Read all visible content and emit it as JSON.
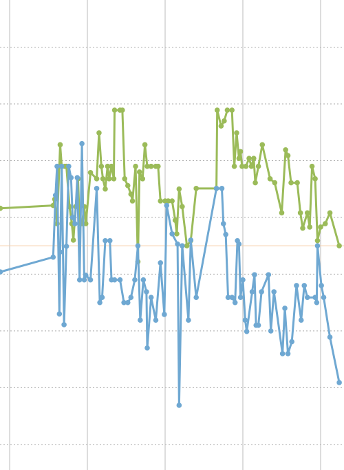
{
  "chart_data": {
    "type": "line",
    "xlim": [
      -0.124,
      4.301
    ],
    "ylim": [
      -0.45,
      7.83
    ],
    "xticks": [
      0,
      1,
      2,
      3,
      4
    ],
    "yticks": [
      0,
      1,
      2,
      3,
      4,
      5,
      6,
      7
    ],
    "grid": true,
    "reference_line": {
      "value": 3.5,
      "color": "#f7cfa8"
    },
    "series": [
      {
        "color": "#9bbb59",
        "x": [
          -0.12,
          0.56,
          0.58,
          0.61,
          0.65,
          0.67,
          0.71,
          0.73,
          0.77,
          0.8,
          0.82,
          0.85,
          0.88,
          0.9,
          0.93,
          0.96,
          0.98,
          1.04,
          1.12,
          1.15,
          1.18,
          1.2,
          1.23,
          1.26,
          1.28,
          1.31,
          1.34,
          1.35,
          1.42,
          1.45,
          1.48,
          1.52,
          1.56,
          1.58,
          1.62,
          1.65,
          1.67,
          1.71,
          1.74,
          1.77,
          1.82,
          1.88,
          1.91,
          1.94,
          2.0,
          2.04,
          2.09,
          2.13,
          2.15,
          2.18,
          2.22,
          2.28,
          2.33,
          2.4,
          2.66,
          2.67,
          2.72,
          2.76,
          2.8,
          2.86,
          2.89,
          2.92,
          2.95,
          2.97,
          2.99,
          3.04,
          3.08,
          3.11,
          3.14,
          3.16,
          3.2,
          3.25,
          3.35,
          3.41,
          3.5,
          3.55,
          3.58,
          3.62,
          3.7,
          3.74,
          3.77,
          3.83,
          3.86,
          3.89,
          3.93,
          3.96,
          4.0,
          4.06,
          4.12,
          4.24
        ],
        "values": [
          4.16,
          4.21,
          4.32,
          3.89,
          5.28,
          4.9,
          4.9,
          4.9,
          4.19,
          3.89,
          3.6,
          4.19,
          4.68,
          3.89,
          3.89,
          4.19,
          3.89,
          4.79,
          4.68,
          5.49,
          4.9,
          4.68,
          4.5,
          4.9,
          4.68,
          4.9,
          4.68,
          5.89,
          5.89,
          5.89,
          4.68,
          4.56,
          4.41,
          4.29,
          4.9,
          3.22,
          4.8,
          4.68,
          5.28,
          4.9,
          4.9,
          4.9,
          4.9,
          4.29,
          4.29,
          4.29,
          4.29,
          3.95,
          3.71,
          4.5,
          4.19,
          3.5,
          3.59,
          4.51,
          4.51,
          5.89,
          5.61,
          5.7,
          5.89,
          5.89,
          4.9,
          5.49,
          5.04,
          5.16,
          4.9,
          4.9,
          5.04,
          4.9,
          5.04,
          4.61,
          4.9,
          5.28,
          4.68,
          4.61,
          4.08,
          5.19,
          5.09,
          4.61,
          4.61,
          4.08,
          3.81,
          4.08,
          3.83,
          4.9,
          4.68,
          3.59,
          3.83,
          3.89,
          4.08,
          3.5
        ]
      },
      {
        "color": "#6fa8d2",
        "x": [
          -0.12,
          0.56,
          0.59,
          0.61,
          0.64,
          0.65,
          0.67,
          0.7,
          0.73,
          0.76,
          0.79,
          0.81,
          0.84,
          0.87,
          0.9,
          0.93,
          0.96,
          0.98,
          1.04,
          1.12,
          1.16,
          1.19,
          1.23,
          1.29,
          1.31,
          1.35,
          1.42,
          1.47,
          1.52,
          1.56,
          1.61,
          1.65,
          1.68,
          1.72,
          1.76,
          1.77,
          1.82,
          1.88,
          1.94,
          1.99,
          2.02,
          2.09,
          2.16,
          2.18,
          2.22,
          2.3,
          2.33,
          2.4,
          2.66,
          2.73,
          2.75,
          2.78,
          2.81,
          2.86,
          2.9,
          2.93,
          2.95,
          2.97,
          3.0,
          3.03,
          3.05,
          3.12,
          3.15,
          3.17,
          3.2,
          3.24,
          3.33,
          3.36,
          3.4,
          3.51,
          3.54,
          3.58,
          3.63,
          3.69,
          3.75,
          3.79,
          3.83,
          3.93,
          3.95,
          3.96,
          4.01,
          4.04,
          4.12,
          4.24
        ],
        "values": [
          3.04,
          3.3,
          4.39,
          4.9,
          2.3,
          3.39,
          4.9,
          2.11,
          3.49,
          4.9,
          4.7,
          4.0,
          3.89,
          4.7,
          2.9,
          5.3,
          2.9,
          2.98,
          2.9,
          4.51,
          2.5,
          2.59,
          3.59,
          3.59,
          2.9,
          2.9,
          2.9,
          2.5,
          2.5,
          2.59,
          2.9,
          3.5,
          2.19,
          2.9,
          2.69,
          1.7,
          2.59,
          2.19,
          3.2,
          2.29,
          4.21,
          3.71,
          3.53,
          0.69,
          3.5,
          2.19,
          3.6,
          2.59,
          4.51,
          4.51,
          3.89,
          3.7,
          2.59,
          2.59,
          2.5,
          3.59,
          3.53,
          2.59,
          2.9,
          2.19,
          1.99,
          2.69,
          2.99,
          2.1,
          2.1,
          2.69,
          2.99,
          2.0,
          2.69,
          1.6,
          2.4,
          1.6,
          1.81,
          2.8,
          2.19,
          2.8,
          2.59,
          2.59,
          2.5,
          3.5,
          2.8,
          2.59,
          1.89,
          1.09
        ]
      }
    ]
  }
}
